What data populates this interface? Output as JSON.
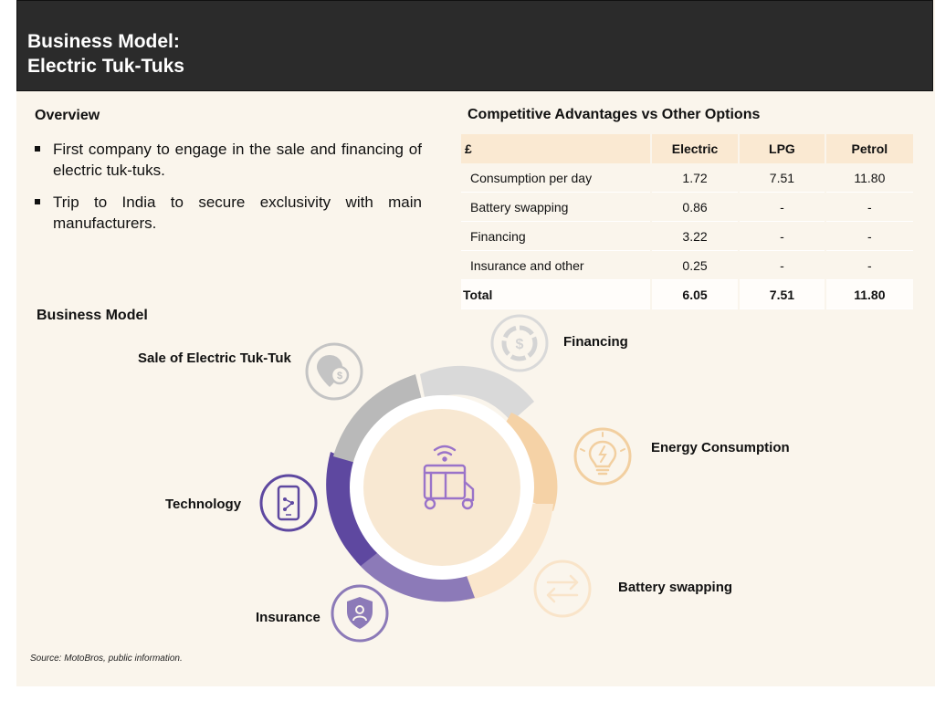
{
  "header": {
    "title_line1": "Business Model:",
    "title_line2": "Electric Tuk-Tuks"
  },
  "overview": {
    "title": "Overview",
    "bullets": [
      "First company to engage in the sale and financing of electric tuk-tuks.",
      "Trip to India to secure exclusivity with main manufacturers."
    ]
  },
  "competitive": {
    "title": "Competitive Advantages vs Other Options",
    "columns": [
      "£",
      "Electric",
      "LPG",
      "Petrol"
    ],
    "rows": [
      [
        "Consumption per day",
        "1.72",
        "7.51",
        "11.80"
      ],
      [
        "Battery swapping",
        "0.86",
        "-",
        "-"
      ],
      [
        "Financing",
        "3.22",
        "-",
        "-"
      ],
      [
        "Insurance and other",
        "0.25",
        "-",
        "-"
      ]
    ],
    "total": [
      "Total",
      "6.05",
      "7.51",
      "11.80"
    ]
  },
  "business_model": {
    "title": "Business Model",
    "segments": {
      "sale": "Sale of Electric Tuk-Tuk",
      "financing": "Financing",
      "energy": "Energy Consumption",
      "battery": "Battery swapping",
      "insurance": "Insurance",
      "technology": "Technology"
    },
    "icons": {
      "sale": "location-dollar-icon",
      "financing": "dollar-coin-icon",
      "energy": "lightbulb-bolt-icon",
      "battery": "swap-arrows-icon",
      "insurance": "shield-user-icon",
      "technology": "smartphone-network-icon",
      "center": "tuk-tuk-wifi-icon"
    },
    "colors": {
      "sale": "#b9b9b9",
      "financing": "#d9d9d9",
      "energy": "#f5d2a6",
      "battery": "#fae6cc",
      "insurance": "#8c7ab8",
      "technology": "#5e48a0",
      "center_fill": "#f7e5cd",
      "icon_purple": "#9a73c9"
    }
  },
  "source": "Source: MotoBros, public information."
}
